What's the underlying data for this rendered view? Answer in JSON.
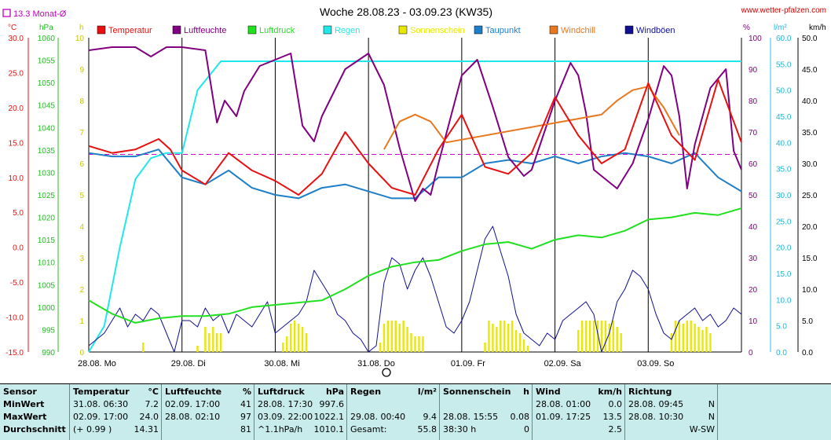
{
  "page": {
    "title": "Woche 28.08.23 - 03.09.23 (KW35)",
    "website": "www.wetter-pfalzen.com",
    "monthly_avg_label": "13.3 Monat-Ø"
  },
  "legend": [
    {
      "name": "Temperatur",
      "color": "#e81010"
    },
    {
      "name": "Luftfeuchte",
      "color": "#800080"
    },
    {
      "name": "Luftdruck",
      "color": "#20e020"
    },
    {
      "name": "Regen",
      "color": "#20e8e8"
    },
    {
      "name": "Sonnenschein",
      "color": "#e8e800"
    },
    {
      "name": "Taupunkt",
      "color": "#1e7ec8"
    },
    {
      "name": "Windchill",
      "color": "#e87820"
    },
    {
      "name": "Windböen",
      "color": "#101090"
    }
  ],
  "axes": {
    "temp": {
      "unit": "°C",
      "color": "#e81010",
      "ticks": [
        "30.0",
        "25.0",
        "20.0",
        "15.0",
        "10.0",
        "5.0",
        "0.0",
        "-5.0",
        "-10.0",
        "-15.0"
      ]
    },
    "pressure": {
      "unit": "hPa",
      "color": "#20c020",
      "ticks": [
        "1060",
        "1055",
        "1050",
        "1045",
        "1040",
        "1035",
        "1030",
        "1025",
        "1020",
        "1015",
        "1010",
        "1005",
        "1000",
        "995",
        "990"
      ]
    },
    "sun": {
      "unit": "h",
      "color": "#c8c800",
      "ticks": [
        "10",
        "9",
        "8",
        "7",
        "6",
        "5",
        "4",
        "3",
        "2",
        "1",
        "0"
      ]
    },
    "humidity": {
      "unit": "%",
      "color": "#800080",
      "ticks": [
        "100",
        "90",
        "80",
        "70",
        "60",
        "50",
        "40",
        "30",
        "20",
        "10",
        "0"
      ]
    },
    "rain": {
      "unit": "l/m²",
      "color": "#20b8d8",
      "ticks": [
        "60.0",
        "55.0",
        "50.0",
        "45.0",
        "40.0",
        "35.0",
        "30.0",
        "25.0",
        "20.0",
        "15.0",
        "10.0",
        "5.0",
        "0.0"
      ]
    },
    "wind": {
      "unit": "km/h",
      "color": "#000",
      "ticks": [
        "50.0",
        "45.0",
        "40.0",
        "35.0",
        "30.0",
        "25.0",
        "20.0",
        "15.0",
        "10.0",
        "5.0",
        "0.0"
      ]
    },
    "days": [
      "28.08. Mo",
      "29.08. Di",
      "30.08. Mi",
      "31.08. Do",
      "01.09. Fr",
      "02.09. Sa",
      "03.09. So"
    ]
  },
  "chart_data": {
    "type": "line",
    "title": "Woche 28.08.23 - 03.09.23 (KW35)",
    "x_unit": "hours since 28.08. 00:00",
    "monthly_avg_temp": 13.3,
    "series": [
      {
        "name": "Temperatur",
        "axis": "temp",
        "color": "#e81010",
        "x": [
          0,
          6,
          12,
          18,
          21,
          24,
          30,
          36,
          42,
          48,
          54,
          60,
          66,
          72,
          78,
          84,
          90,
          96,
          102,
          108,
          114,
          120,
          126,
          132,
          138,
          144,
          150,
          156,
          162,
          168
        ],
        "values": [
          14.5,
          13.5,
          14,
          15.5,
          14,
          11,
          9,
          13.5,
          11,
          9.5,
          7.5,
          10.5,
          16.5,
          12,
          8.5,
          7.5,
          14,
          19,
          11.5,
          10.5,
          13.5,
          21.5,
          16,
          12,
          14,
          23.5,
          16,
          12.5,
          24,
          15
        ]
      },
      {
        "name": "Windchill",
        "axis": "temp",
        "color": "#e87820",
        "x": [
          76,
          80,
          84,
          88,
          92,
          132,
          136,
          140,
          144,
          148,
          152
        ],
        "values": [
          14,
          18,
          19,
          18,
          15,
          19,
          21,
          22.5,
          23,
          20,
          16
        ]
      },
      {
        "name": "Taupunkt",
        "axis": "temp",
        "color": "#1e7ec8",
        "x": [
          0,
          6,
          12,
          18,
          24,
          30,
          36,
          42,
          48,
          54,
          60,
          66,
          72,
          78,
          84,
          90,
          96,
          102,
          108,
          114,
          120,
          126,
          132,
          138,
          144,
          150,
          156,
          162,
          168
        ],
        "values": [
          13.5,
          13,
          13,
          14,
          10,
          9,
          11,
          8.5,
          7.5,
          7,
          8.5,
          9,
          8,
          7,
          7,
          10,
          10,
          12,
          12.5,
          12,
          13,
          12,
          13,
          13.5,
          13,
          12,
          13.5,
          10,
          8
        ]
      },
      {
        "name": "Luftfeuchte",
        "axis": "humidity",
        "color": "#800080",
        "x": [
          0,
          6,
          12,
          16,
          20,
          24,
          30,
          33,
          35,
          38,
          40,
          44,
          48,
          52,
          55,
          58,
          60,
          62,
          66,
          72,
          76,
          80,
          84,
          86,
          88,
          90,
          96,
          100,
          104,
          108,
          112,
          114,
          120,
          124,
          126,
          128,
          130,
          136,
          140,
          144,
          148,
          150,
          152,
          154,
          156,
          160,
          164,
          166,
          168
        ],
        "values": [
          96,
          97,
          97,
          94,
          97,
          97,
          96,
          73,
          80,
          75,
          83,
          91,
          93,
          95,
          72,
          67,
          75,
          80,
          90,
          95,
          85,
          65,
          48,
          52,
          50,
          60,
          88,
          93,
          78,
          62,
          56,
          58,
          80,
          92,
          88,
          76,
          58,
          52,
          60,
          74,
          91,
          88,
          75,
          52,
          66,
          84,
          90,
          64,
          58
        ]
      },
      {
        "name": "Luftdruck",
        "axis": "pressure",
        "color": "#20e020",
        "x": [
          0,
          6,
          12,
          18,
          24,
          30,
          36,
          42,
          48,
          54,
          60,
          66,
          72,
          78,
          84,
          90,
          96,
          102,
          108,
          114,
          120,
          126,
          132,
          138,
          144,
          150,
          156,
          162,
          168
        ],
        "values": [
          1001.5,
          998.5,
          996.5,
          997.5,
          998,
          998,
          998.5,
          1000,
          1000.5,
          1001,
          1001.5,
          1004,
          1007,
          1009,
          1010,
          1010.5,
          1012.5,
          1014,
          1014.5,
          1013,
          1015,
          1016,
          1015.5,
          1017,
          1019.5,
          1020,
          1021,
          1020.5,
          1022
        ]
      },
      {
        "name": "Regen",
        "axis": "rain",
        "color": "#20e8e8",
        "x": [
          0,
          4,
          8,
          12,
          16,
          20,
          24,
          28,
          34,
          36,
          60,
          90,
          120,
          150,
          168
        ],
        "values": [
          0,
          5,
          20,
          33,
          37,
          38,
          38,
          50,
          55.5,
          55.5,
          55.5,
          55.5,
          55.5,
          55.5,
          55.5
        ]
      },
      {
        "name": "Windböen",
        "axis": "wind",
        "color": "#101090",
        "x": [
          0,
          4,
          8,
          10,
          12,
          14,
          16,
          18,
          20,
          22,
          24,
          26,
          28,
          30,
          32,
          34,
          36,
          38,
          40,
          42,
          44,
          46,
          48,
          50,
          52,
          54,
          56,
          58,
          60,
          62,
          64,
          66,
          68,
          70,
          72,
          74,
          76,
          78,
          80,
          82,
          84,
          86,
          88,
          90,
          92,
          94,
          96,
          98,
          100,
          102,
          104,
          106,
          108,
          110,
          112,
          114,
          116,
          118,
          120,
          122,
          124,
          126,
          128,
          130,
          132,
          134,
          136,
          138,
          140,
          142,
          144,
          146,
          148,
          150,
          152,
          154,
          156,
          158,
          160,
          162,
          164,
          166,
          168
        ],
        "values": [
          1,
          3,
          7,
          4,
          6,
          5,
          7,
          6,
          3,
          0,
          5,
          5,
          4,
          7,
          5,
          6,
          3,
          6,
          5,
          4,
          6,
          8,
          3,
          4,
          5,
          6,
          8,
          13,
          11,
          9,
          6,
          5,
          3,
          2,
          0,
          1,
          11,
          15,
          14,
          10,
          13,
          15,
          12,
          8,
          4,
          3,
          5,
          8,
          13,
          18,
          20,
          16,
          12,
          6,
          3,
          2,
          1,
          3,
          2,
          5,
          6,
          7,
          8,
          6,
          0,
          3,
          8,
          10,
          13,
          12,
          10,
          6,
          3,
          2,
          5,
          6,
          7,
          5,
          6,
          4,
          5,
          7,
          6
        ]
      }
    ],
    "sun_hours": {
      "axis": "sun",
      "color": "#e8e800",
      "x": [
        14,
        28,
        30,
        31,
        32,
        33,
        34,
        50,
        51,
        52,
        53,
        54,
        55,
        56,
        75,
        76,
        77,
        78,
        79,
        80,
        81,
        82,
        83,
        84,
        85,
        86,
        102,
        103,
        104,
        105,
        106,
        107,
        108,
        109,
        110,
        111,
        112,
        113,
        126,
        127,
        128,
        129,
        130,
        131,
        132,
        133,
        134,
        135,
        136,
        137,
        150,
        151,
        152,
        153,
        154,
        155,
        156,
        157,
        158,
        159,
        160
      ],
      "values": [
        0.3,
        0.2,
        0.8,
        0.6,
        0.8,
        0.6,
        0.6,
        0.3,
        0.5,
        0.9,
        1.0,
        0.9,
        0.8,
        0.6,
        0.3,
        0.9,
        1.0,
        1.0,
        1.0,
        0.9,
        1.0,
        0.8,
        0.6,
        0.5,
        0.5,
        0.5,
        0.3,
        1.0,
        0.9,
        0.8,
        1.0,
        1.0,
        0.9,
        1.0,
        0.7,
        0.6,
        0.4,
        0.2,
        0.7,
        1.0,
        1.0,
        1.0,
        1.0,
        1.0,
        1.0,
        1.0,
        0.9,
        1.0,
        0.8,
        0.6,
        0.6,
        1.0,
        1.0,
        0.9,
        1.0,
        1.0,
        0.9,
        0.8,
        0.7,
        0.8,
        0.6
      ]
    }
  },
  "table": {
    "labels": [
      "Sensor",
      "MinWert",
      "MaxWert",
      "Durchschnitt"
    ],
    "temperature": {
      "header": "Temperatur",
      "unit": "°C",
      "min_time": "31.08.  06:30",
      "min_val": "7.2",
      "max_time": "02.09.  17:00",
      "max_val": "24.0",
      "avg_note": "(+ 0.99 )",
      "avg_val": "14.31"
    },
    "humidity": {
      "header": "Luftfeuchte",
      "unit": "%",
      "min_time": "02.09.  17:00",
      "min_val": "41",
      "max_time": "28.08.  02:10",
      "max_val": "97",
      "avg_val": "81"
    },
    "pressure": {
      "header": "Luftdruck",
      "unit": "hPa",
      "min_time": "28.08.  17:30",
      "min_val": "997.6",
      "max_time": "03.09.  22:00",
      "max_val": "1022.1",
      "avg_note": "^1.1hPa/h",
      "avg_val": "1010.1"
    },
    "rain": {
      "header": "Regen",
      "unit": "l/m²",
      "max_time": "29.08.  00:40",
      "max_val": "9.4",
      "avg_note": "Gesamt:",
      "avg_val": "55.8"
    },
    "sun": {
      "header": "Sonnenschein",
      "unit": "h",
      "max_time": "28.08.  15:55",
      "max_val": "0.08",
      "avg_note": "38:30 h",
      "avg_val": "0"
    },
    "wind": {
      "header": "Wind",
      "unit": "km/h",
      "min_time": "28.08.  01:00",
      "min_val": "0.0",
      "max_time": "01.09.  17:25",
      "max_val": "13.5",
      "avg_val": "2.5"
    },
    "direction": {
      "header": "Richtung",
      "min_time": "28.08.  09:45",
      "min_val": "N",
      "max_time": "28.08.  10:30",
      "max_val": "N",
      "avg_val": "W-SW"
    }
  }
}
